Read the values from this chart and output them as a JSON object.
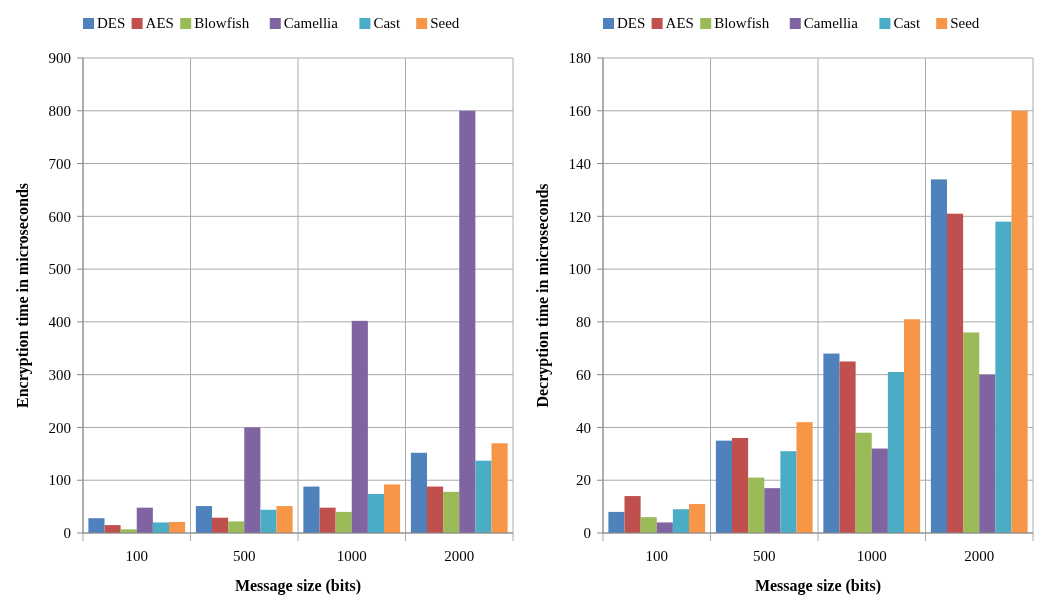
{
  "chart_data": [
    {
      "type": "bar",
      "xlabel": "Message size (bits)",
      "ylabel": "Encryption time in microseconds",
      "categories": [
        "100",
        "500",
        "1000",
        "2000"
      ],
      "series": [
        {
          "name": "DES",
          "color": "#4f81bd",
          "values": [
            28,
            51,
            88,
            152
          ]
        },
        {
          "name": "AES",
          "color": "#c0504d",
          "values": [
            15,
            29,
            48,
            88
          ]
        },
        {
          "name": "Blowfish",
          "color": "#9bbb59",
          "values": [
            7,
            22,
            40,
            78
          ]
        },
        {
          "name": "Camellia",
          "color": "#8064a2",
          "values": [
            48,
            200,
            402,
            800
          ]
        },
        {
          "name": "Cast",
          "color": "#4bacc6",
          "values": [
            20,
            44,
            74,
            137
          ]
        },
        {
          "name": "Seed",
          "color": "#f79646",
          "values": [
            21,
            51,
            92,
            170
          ]
        }
      ],
      "ylim": [
        0,
        900
      ],
      "yticks": [
        0,
        100,
        200,
        300,
        400,
        500,
        600,
        700,
        800,
        900
      ],
      "grid": true,
      "legend": "top"
    },
    {
      "type": "bar",
      "xlabel": "Message size (bits)",
      "ylabel": "Decryption time in microseconds",
      "categories": [
        "100",
        "500",
        "1000",
        "2000"
      ],
      "series": [
        {
          "name": "DES",
          "color": "#4f81bd",
          "values": [
            8,
            35,
            68,
            134
          ]
        },
        {
          "name": "AES",
          "color": "#c0504d",
          "values": [
            14,
            36,
            65,
            121
          ]
        },
        {
          "name": "Blowfish",
          "color": "#9bbb59",
          "values": [
            6,
            21,
            38,
            76
          ]
        },
        {
          "name": "Camellia",
          "color": "#8064a2",
          "values": [
            4,
            17,
            32,
            60
          ]
        },
        {
          "name": "Cast",
          "color": "#4bacc6",
          "values": [
            9,
            31,
            61,
            118
          ]
        },
        {
          "name": "Seed",
          "color": "#f79646",
          "values": [
            11,
            42,
            81,
            160
          ]
        }
      ],
      "ylim": [
        0,
        180
      ],
      "yticks": [
        0,
        20,
        40,
        60,
        80,
        100,
        120,
        140,
        160,
        180
      ],
      "grid": true,
      "legend": "top"
    }
  ]
}
